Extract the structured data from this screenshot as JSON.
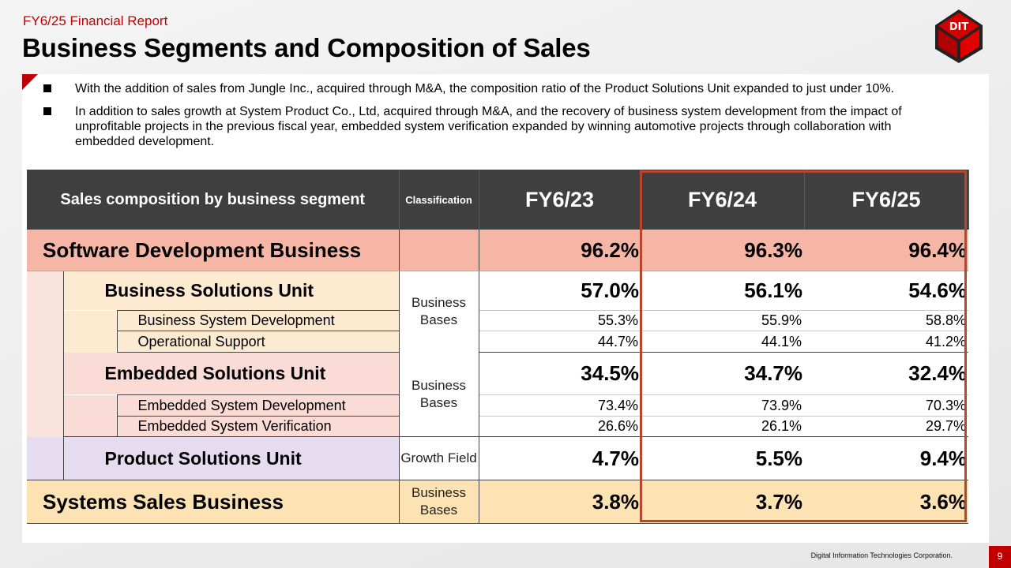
{
  "header": {
    "report_label": "FY6/25 Financial Report",
    "title": "Business Segments and Composition of Sales",
    "logo_text": "DIT"
  },
  "bullets": [
    "With the addition of sales from Jungle Inc., acquired through M&A, the composition ratio of the Product Solutions Unit expanded to just under 10%.",
    "In addition to sales growth at System Product Co., Ltd, acquired through M&A, and the recovery of business system development from the impact of unprofitable projects in the previous fiscal year, embedded system verification expanded by winning automotive projects through collaboration with embedded development."
  ],
  "table": {
    "headers": {
      "segment": "Sales composition by business segment",
      "classification": "Classification",
      "years": [
        "FY6/23",
        "FY6/24",
        "FY6/25"
      ]
    },
    "software": {
      "label": "Software Development Business",
      "values": [
        "96.2%",
        "96.3%",
        "96.4%"
      ]
    },
    "bsu": {
      "label": "Business Solutions Unit",
      "classification": "Business Bases",
      "values": [
        "57.0%",
        "56.1%",
        "54.6%"
      ],
      "subs": [
        {
          "label": "Business System Development",
          "values": [
            "55.3%",
            "55.9%",
            "58.8%"
          ]
        },
        {
          "label": "Operational Support",
          "values": [
            "44.7%",
            "44.1%",
            "41.2%"
          ]
        }
      ]
    },
    "esu": {
      "label": "Embedded Solutions Unit",
      "classification": "Business Bases",
      "values": [
        "34.5%",
        "34.7%",
        "32.4%"
      ],
      "subs": [
        {
          "label": "Embedded System Development",
          "values": [
            "73.4%",
            "73.9%",
            "70.3%"
          ]
        },
        {
          "label": "Embedded System Verification",
          "values": [
            "26.6%",
            "26.1%",
            "29.7%"
          ]
        }
      ]
    },
    "psu": {
      "label": "Product Solutions Unit",
      "classification": "Growth Field",
      "values": [
        "4.7%",
        "5.5%",
        "9.4%"
      ]
    },
    "systems": {
      "label": "Systems Sales Business",
      "classification": "Business Bases",
      "values": [
        "3.8%",
        "3.7%",
        "3.6%"
      ]
    }
  },
  "footer": {
    "company": "Digital Information Technologies Corporation.",
    "page": "9"
  },
  "colors": {
    "accent": "#c00000",
    "highlight": "#b5472a",
    "header_bg": "#3f3f3f"
  }
}
